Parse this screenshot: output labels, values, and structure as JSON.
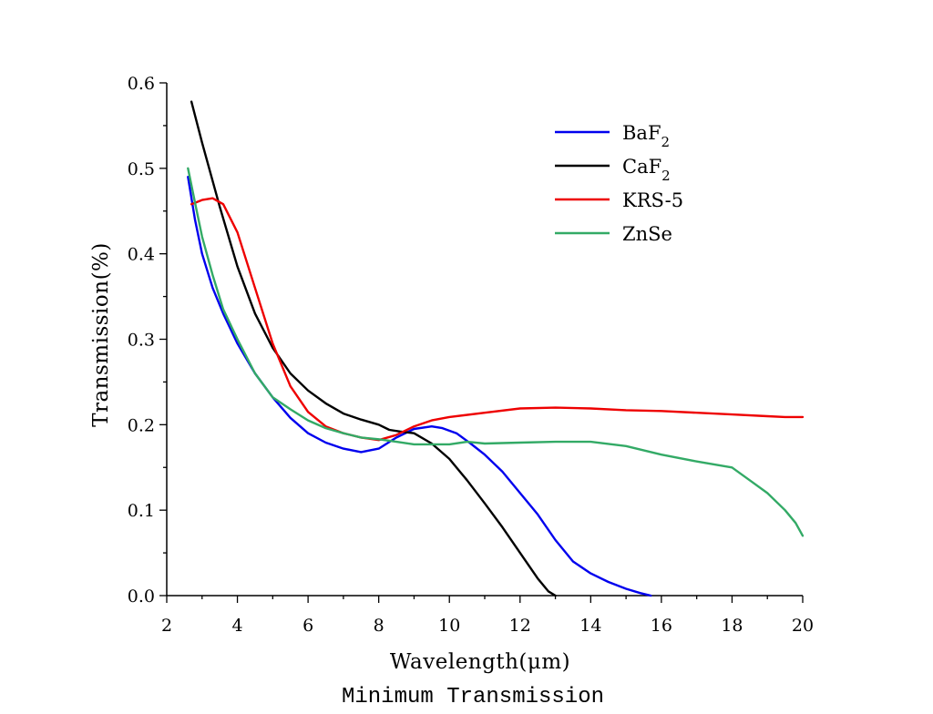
{
  "chart_data": {
    "type": "line",
    "title": "Minimum Transmission",
    "xlabel": "Wavelength(μm)",
    "ylabel": "Transmission(%)",
    "xlim": [
      2,
      20
    ],
    "ylim": [
      0.0,
      0.6
    ],
    "xticks": [
      "2",
      "4",
      "6",
      "8",
      "10",
      "12",
      "14",
      "16",
      "18",
      "20"
    ],
    "yticks": [
      "0.0",
      "0.1",
      "0.2",
      "0.3",
      "0.4",
      "0.5",
      "0.6"
    ],
    "grid": false,
    "legend_position": "top-right",
    "series": [
      {
        "name": "BaF",
        "subscript": "2",
        "color": "#0000ee",
        "x": [
          2.6,
          2.8,
          3.0,
          3.3,
          3.6,
          4.0,
          4.5,
          5.0,
          5.5,
          6.0,
          6.5,
          7.0,
          7.5,
          8.0,
          8.5,
          9.0,
          9.5,
          9.8,
          10.2,
          10.6,
          11.0,
          11.5,
          12.0,
          12.5,
          13.0,
          13.5,
          14.0,
          14.5,
          15.0,
          15.4,
          15.7
        ],
        "y": [
          0.49,
          0.44,
          0.4,
          0.36,
          0.33,
          0.295,
          0.26,
          0.232,
          0.208,
          0.19,
          0.179,
          0.172,
          0.168,
          0.172,
          0.185,
          0.195,
          0.198,
          0.196,
          0.19,
          0.178,
          0.165,
          0.145,
          0.12,
          0.095,
          0.065,
          0.04,
          0.026,
          0.016,
          0.008,
          0.003,
          0.0
        ]
      },
      {
        "name": "CaF",
        "subscript": "2",
        "color": "#000000",
        "x": [
          2.7,
          3.0,
          3.5,
          4.0,
          4.5,
          5.0,
          5.5,
          6.0,
          6.5,
          7.0,
          7.5,
          8.0,
          8.3,
          8.6,
          9.0,
          9.5,
          10.0,
          10.5,
          11.0,
          11.5,
          12.0,
          12.5,
          12.8,
          13.0
        ],
        "y": [
          0.578,
          0.53,
          0.455,
          0.385,
          0.33,
          0.29,
          0.26,
          0.24,
          0.225,
          0.213,
          0.206,
          0.2,
          0.194,
          0.192,
          0.19,
          0.178,
          0.16,
          0.135,
          0.108,
          0.08,
          0.05,
          0.02,
          0.005,
          0.0
        ]
      },
      {
        "name": "KRS-5",
        "subscript": "",
        "color": "#ee0000",
        "x": [
          2.7,
          3.0,
          3.3,
          3.6,
          4.0,
          4.5,
          5.0,
          5.5,
          6.0,
          6.5,
          7.0,
          7.5,
          8.0,
          8.5,
          9.0,
          9.5,
          10.0,
          11.0,
          12.0,
          13.0,
          14.0,
          15.0,
          16.0,
          17.0,
          18.0,
          19.0,
          19.5,
          20.0
        ],
        "y": [
          0.458,
          0.463,
          0.465,
          0.458,
          0.425,
          0.36,
          0.295,
          0.245,
          0.215,
          0.198,
          0.19,
          0.185,
          0.182,
          0.188,
          0.198,
          0.205,
          0.209,
          0.214,
          0.219,
          0.22,
          0.219,
          0.217,
          0.216,
          0.214,
          0.212,
          0.21,
          0.209,
          0.209
        ]
      },
      {
        "name": "ZnSe",
        "subscript": "",
        "color": "#33aa66",
        "x": [
          2.6,
          2.8,
          3.0,
          3.3,
          3.6,
          4.0,
          4.5,
          5.0,
          5.5,
          6.0,
          6.5,
          7.0,
          7.5,
          8.0,
          8.5,
          9.0,
          9.5,
          10.0,
          10.5,
          11.0,
          12.0,
          13.0,
          14.0,
          15.0,
          16.0,
          17.0,
          18.0,
          18.5,
          19.0,
          19.5,
          19.8,
          20.0
        ],
        "y": [
          0.5,
          0.46,
          0.42,
          0.375,
          0.335,
          0.3,
          0.26,
          0.232,
          0.218,
          0.205,
          0.196,
          0.19,
          0.185,
          0.183,
          0.18,
          0.177,
          0.177,
          0.177,
          0.18,
          0.178,
          0.179,
          0.18,
          0.18,
          0.175,
          0.165,
          0.157,
          0.15,
          0.135,
          0.12,
          0.1,
          0.085,
          0.07
        ]
      }
    ]
  }
}
